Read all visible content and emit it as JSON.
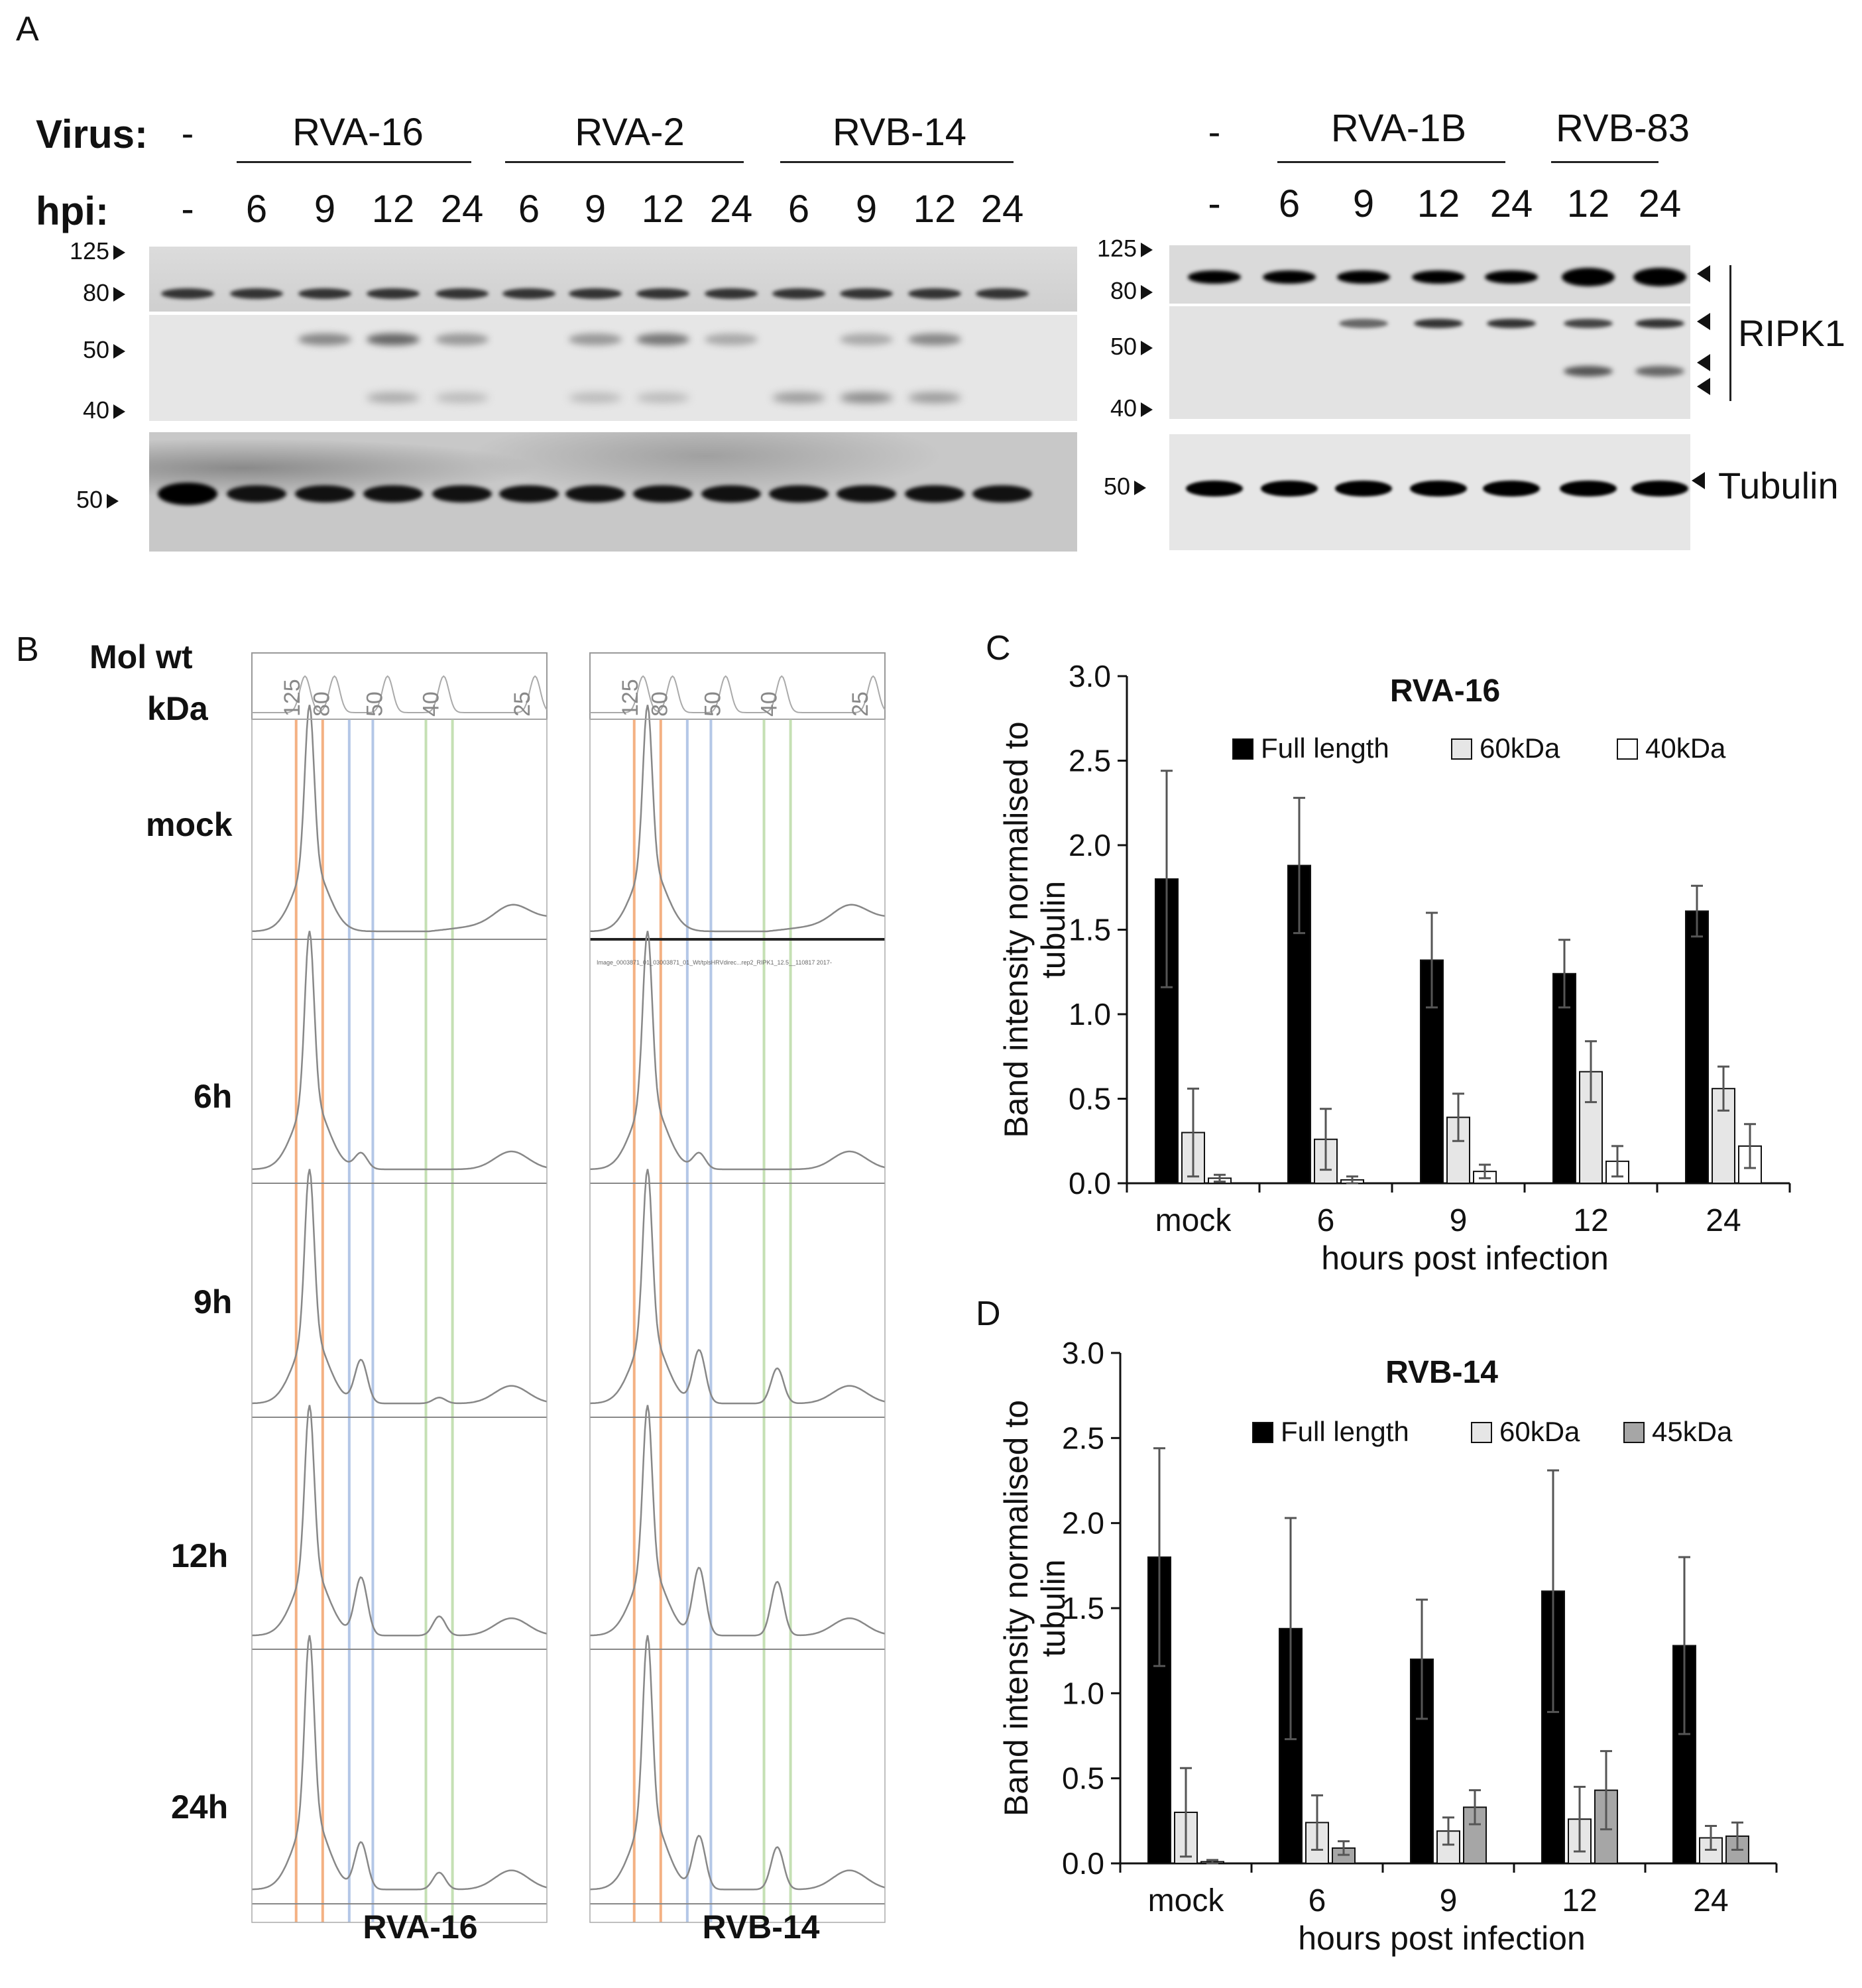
{
  "panel_a": {
    "letter": "A",
    "virus_label": "Virus:",
    "hpi_label": "hpi:",
    "left": {
      "mock_virus": "-",
      "groups": [
        "RVA-16",
        "RVA-2",
        "RVB-14"
      ],
      "hpi": [
        "-",
        "6",
        "9",
        "12",
        "24",
        "6",
        "9",
        "12",
        "24",
        "6",
        "9",
        "12",
        "24"
      ],
      "mw_top": [
        "125",
        "80"
      ],
      "mw_mid": [
        "50",
        "40"
      ],
      "mw_tubulin": "50"
    },
    "right": {
      "mock_virus": "-",
      "groups": [
        "RVA-1B",
        "RVB-83"
      ],
      "hpi": [
        "-",
        "6",
        "9",
        "12",
        "24",
        "12",
        "24"
      ],
      "mw_top": [
        "125",
        "80"
      ],
      "mw_mid": [
        "50",
        "40"
      ],
      "mw_tubulin": "50",
      "ripk1_label": "RIPK1",
      "tubulin_label": "Tubulin"
    }
  },
  "panel_b": {
    "letter": "B",
    "header_line1": "Mol wt",
    "header_line2": "kDa",
    "markers": [
      "125",
      "80",
      "50",
      "40",
      "25"
    ],
    "rows": [
      "mock",
      "6h",
      "9h",
      "12h",
      "24h"
    ],
    "columns": [
      "RVA-16",
      "RVB-14"
    ],
    "strip_caption": "Image_0003871_01_03003871_01_Wt/tplsHRVdirec...rep2_RIPK1_12.5__110817 2017-"
  },
  "colors": {
    "black_bar": "#000000",
    "light_bar": "#e6e6e6",
    "white_bar": "#ffffff",
    "gray_bar": "#a6a6a6",
    "orange_line": "#f4b183",
    "blue_line": "#b4c7e7",
    "green_line": "#c5e0b4"
  },
  "chart_data": [
    {
      "panel": "C",
      "type": "bar",
      "title": "RVA-16",
      "ylabel": "Band intensity normalised to tubulin",
      "ylabel_lines": [
        "Band intensity normalised to",
        "tubulin"
      ],
      "xlabel": "hours post infection",
      "categories": [
        "mock",
        "6",
        "9",
        "12",
        "24"
      ],
      "ylim": [
        0,
        3.0
      ],
      "yticks": [
        "0.0",
        "0.5",
        "1.0",
        "1.5",
        "2.0",
        "2.5",
        "3.0"
      ],
      "series": [
        {
          "name": "Full length",
          "values": [
            1.8,
            1.88,
            1.32,
            1.24,
            1.61
          ],
          "errors": [
            0.64,
            0.4,
            0.28,
            0.2,
            0.15
          ]
        },
        {
          "name": "60kDa",
          "values": [
            0.3,
            0.26,
            0.39,
            0.66,
            0.56
          ],
          "errors": [
            0.26,
            0.18,
            0.14,
            0.18,
            0.13
          ]
        },
        {
          "name": "40kDa",
          "values": [
            0.03,
            0.02,
            0.07,
            0.13,
            0.22
          ],
          "errors": [
            0.02,
            0.02,
            0.04,
            0.09,
            0.13
          ]
        }
      ]
    },
    {
      "panel": "D",
      "type": "bar",
      "title": "RVB-14",
      "ylabel": "Band intensity normalised to tubulin",
      "ylabel_lines": [
        "Band intensity normalised to",
        "tubulin"
      ],
      "xlabel": "hours post infection",
      "categories": [
        "mock",
        "6",
        "9",
        "12",
        "24"
      ],
      "ylim": [
        0,
        3.0
      ],
      "yticks": [
        "0.0",
        "0.5",
        "1.0",
        "1.5",
        "2.0",
        "2.5",
        "3.0"
      ],
      "series": [
        {
          "name": "Full length",
          "values": [
            1.8,
            1.38,
            1.2,
            1.6,
            1.28
          ],
          "errors": [
            0.64,
            0.65,
            0.35,
            0.71,
            0.52
          ]
        },
        {
          "name": "60kDa",
          "values": [
            0.3,
            0.24,
            0.19,
            0.26,
            0.15
          ],
          "errors": [
            0.26,
            0.16,
            0.08,
            0.19,
            0.07
          ]
        },
        {
          "name": "45kDa",
          "values": [
            0.01,
            0.09,
            0.33,
            0.43,
            0.16
          ],
          "errors": [
            0.01,
            0.04,
            0.1,
            0.23,
            0.08
          ]
        }
      ]
    }
  ]
}
